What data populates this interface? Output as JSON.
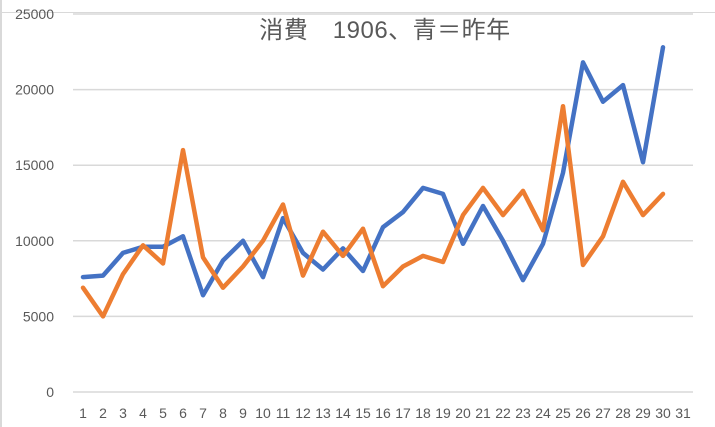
{
  "chart_data": {
    "type": "line",
    "title": "消費　1906、青＝昨年",
    "xlabel": "",
    "ylabel": "",
    "ylim": [
      0,
      25000
    ],
    "yticks": [
      0,
      5000,
      10000,
      15000,
      20000,
      25000
    ],
    "grid": true,
    "legend": "none",
    "categories": [
      "1",
      "2",
      "3",
      "4",
      "5",
      "6",
      "7",
      "8",
      "9",
      "10",
      "11",
      "12",
      "13",
      "14",
      "15",
      "16",
      "17",
      "18",
      "19",
      "20",
      "21",
      "22",
      "23",
      "24",
      "25",
      "26",
      "27",
      "28",
      "29",
      "30",
      "31"
    ],
    "series": [
      {
        "name": "昨年 (blue)",
        "color": "#4472C4",
        "values": [
          7600,
          7700,
          9200,
          9600,
          9600,
          10300,
          6400,
          8700,
          10000,
          7600,
          11500,
          9200,
          8100,
          9500,
          8000,
          10900,
          11900,
          13500,
          13100,
          9800,
          12300,
          10000,
          7400,
          9800,
          14500,
          21800,
          19200,
          20300,
          15200,
          22800,
          null
        ]
      },
      {
        "name": "1906 (orange)",
        "color": "#ED7D31",
        "values": [
          6900,
          5000,
          7800,
          9700,
          8500,
          16000,
          8900,
          6900,
          8300,
          10000,
          12400,
          7700,
          10600,
          9000,
          10800,
          7000,
          8300,
          9000,
          8600,
          11700,
          13500,
          11700,
          13300,
          10700,
          18900,
          8400,
          10300,
          13900,
          11700,
          13100,
          null
        ]
      }
    ]
  },
  "colors": {
    "gridline": "#d9d9d9",
    "text": "#595959"
  }
}
